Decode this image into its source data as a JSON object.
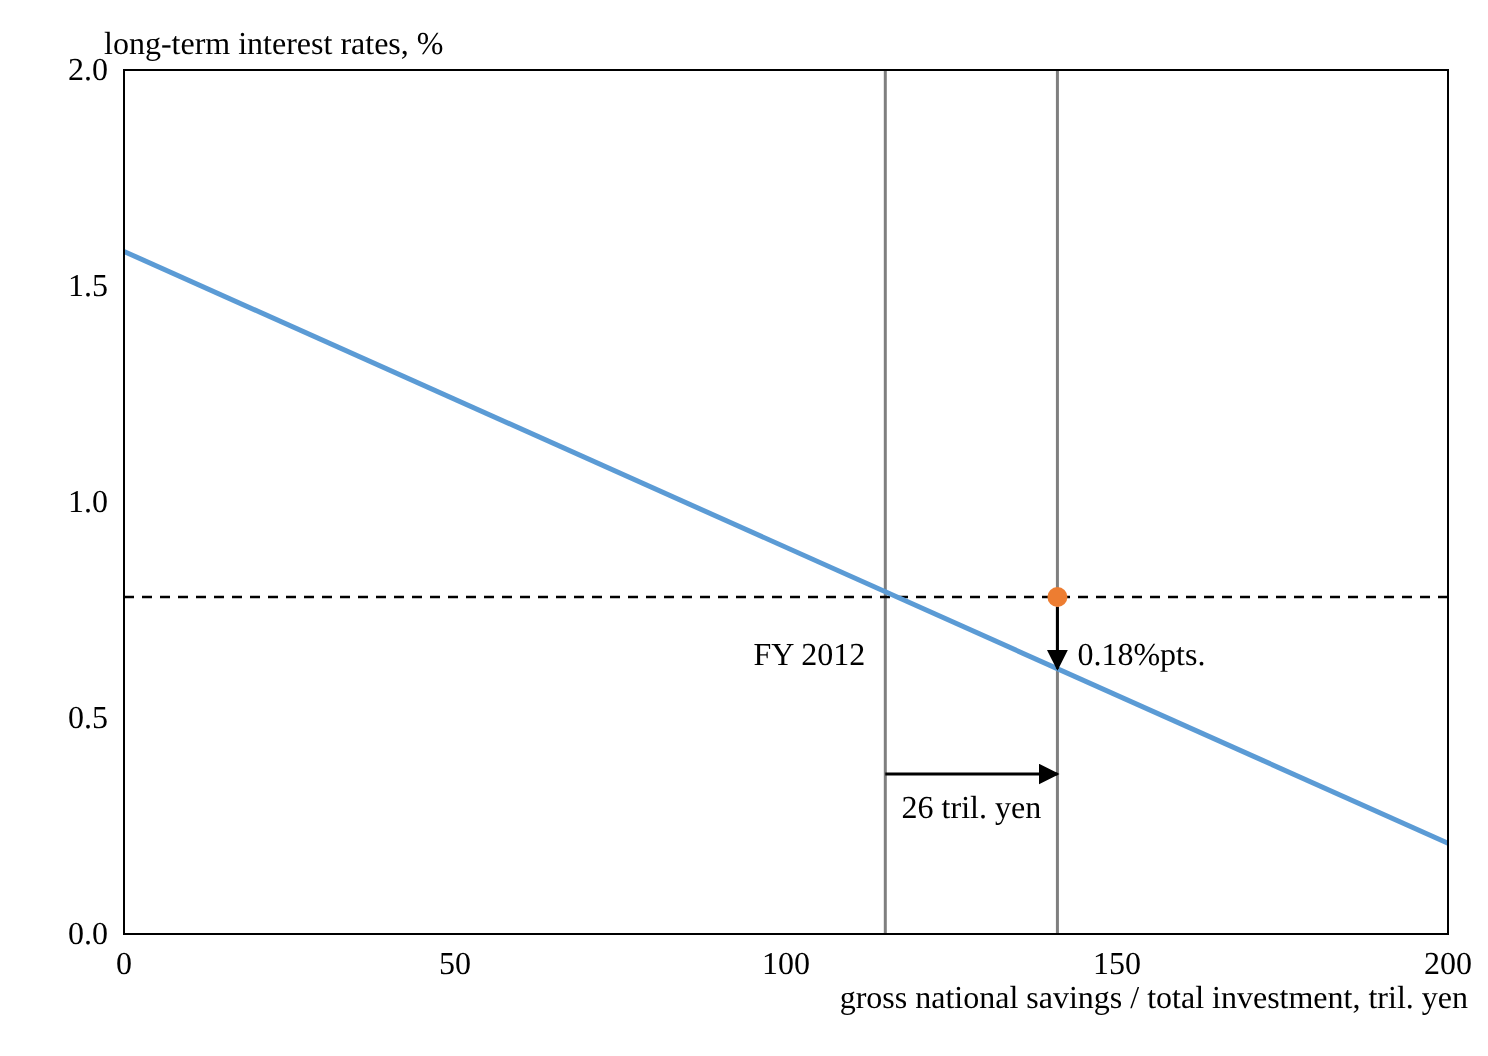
{
  "chart_data": {
    "type": "line",
    "ylabel": "long-term interest rates, %",
    "xlabel": "gross national savings / total investment, tril.  yen",
    "xlim": [
      0,
      200
    ],
    "xticks": [
      0,
      50,
      100,
      150,
      200
    ],
    "ylim": [
      0,
      2
    ],
    "yticks": [
      {
        "value": 0,
        "label": "0.0"
      },
      {
        "value": 0.5,
        "label": "0.5"
      },
      {
        "value": 1,
        "label": "1.0"
      },
      {
        "value": 1.5,
        "label": "1.5"
      },
      {
        "value": 2,
        "label": "2.0"
      }
    ],
    "grid": false,
    "series": [
      {
        "color": "#5b9bd5",
        "x": [
          0,
          200
        ],
        "values": [
          1.58,
          0.21
        ]
      },
      {
        "type": "scatter",
        "color": "#ed7d31",
        "x": [
          141
        ],
        "values": [
          0.78
        ],
        "marker": "circle"
      }
    ],
    "ref_lines": [
      {
        "axis": "x",
        "value": 115,
        "color": "#7f7f7f",
        "line_style": "solid"
      },
      {
        "axis": "x",
        "value": 141,
        "color": "#7f7f7f",
        "line_style": "solid"
      },
      {
        "axis": "y",
        "value": 0.78,
        "color": "#000000",
        "line_style": "dashed"
      }
    ],
    "annotations": [
      "FY 2012",
      "0.18%pts.",
      "26 tril. yen"
    ]
  }
}
